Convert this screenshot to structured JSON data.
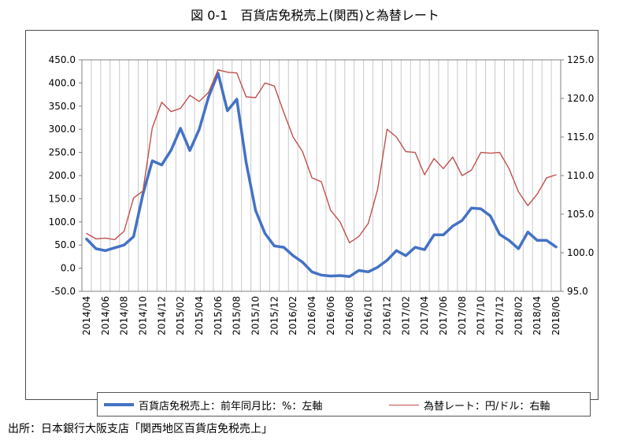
{
  "title": "図 0-1　百貨店免税売上(関西)と為替レート",
  "source": "出所：日本銀行大阪支店「関西地区百貨店免税売上」",
  "colors": {
    "series1": "#4472c4",
    "series2": "#c0504d",
    "grid": "#c8c8c8",
    "axis": "#808080"
  },
  "chart_data": {
    "type": "line",
    "x_tick_labels": [
      "2014/04",
      "2014/06",
      "2014/08",
      "2014/10",
      "2014/12",
      "2015/02",
      "2015/04",
      "2015/06",
      "2015/08",
      "2015/10",
      "2015/12",
      "2016/02",
      "2016/04",
      "2016/06",
      "2016/08",
      "2016/10",
      "2016/12",
      "2017/02",
      "2017/04",
      "2017/06",
      "2017/08",
      "2017/10",
      "2017/12",
      "2018/02",
      "2018/04",
      "2018/06"
    ],
    "x": [
      "2014/04",
      "2014/05",
      "2014/06",
      "2014/07",
      "2014/08",
      "2014/09",
      "2014/10",
      "2014/11",
      "2014/12",
      "2015/01",
      "2015/02",
      "2015/03",
      "2015/04",
      "2015/05",
      "2015/06",
      "2015/07",
      "2015/08",
      "2015/09",
      "2015/10",
      "2015/11",
      "2015/12",
      "2016/01",
      "2016/02",
      "2016/03",
      "2016/04",
      "2016/05",
      "2016/06",
      "2016/07",
      "2016/08",
      "2016/09",
      "2016/10",
      "2016/11",
      "2016/12",
      "2017/01",
      "2017/02",
      "2017/03",
      "2017/04",
      "2017/05",
      "2017/06",
      "2017/07",
      "2017/08",
      "2017/09",
      "2017/10",
      "2017/11",
      "2017/12",
      "2018/01",
      "2018/02",
      "2018/03",
      "2018/04",
      "2018/05",
      "2018/06"
    ],
    "left_axis": {
      "min": -50,
      "max": 450,
      "step": 50,
      "tick_labels": [
        "-50.0",
        "0.0",
        "50.0",
        "100.0",
        "150.0",
        "200.0",
        "250.0",
        "300.0",
        "350.0",
        "400.0",
        "450.0"
      ]
    },
    "right_axis": {
      "min": 95,
      "max": 125,
      "step": 5,
      "tick_labels": [
        "95.0",
        "100.0",
        "105.0",
        "110.0",
        "115.0",
        "120.0",
        "125.0"
      ]
    },
    "grid": "vertical",
    "legend_position": "bottom",
    "series": [
      {
        "name": "百貨店免税売上：前年同月比：%：左軸",
        "axis": "left",
        "color": "#4472c4",
        "values": [
          63,
          42,
          38,
          44,
          50,
          68,
          160,
          232,
          223,
          255,
          302,
          254,
          300,
          370,
          421,
          340,
          365,
          228,
          125,
          75,
          48,
          45,
          27,
          13,
          -8,
          -15,
          -17,
          -16,
          -18,
          -5,
          -8,
          2,
          17,
          38,
          27,
          45,
          40,
          72,
          72,
          91,
          103,
          130,
          128,
          113,
          73,
          60,
          42,
          78,
          60,
          60,
          46
        ]
      },
      {
        "name": "為替レート：円/ドル：右軸",
        "axis": "right",
        "color": "#c0504d",
        "values": [
          102.5,
          101.8,
          101.9,
          101.7,
          102.8,
          107.1,
          108.0,
          116.2,
          119.5,
          118.3,
          118.7,
          120.4,
          119.6,
          120.8,
          123.7,
          123.4,
          123.3,
          120.2,
          120.1,
          122.0,
          121.6,
          118.2,
          115.0,
          113.1,
          109.7,
          109.2,
          105.5,
          104.0,
          101.3,
          102.1,
          103.8,
          108.2,
          116.0,
          115.0,
          113.1,
          113.0,
          110.1,
          112.2,
          110.9,
          112.4,
          110.0,
          110.7,
          113.0,
          112.9,
          113.0,
          110.9,
          107.9,
          106.1,
          107.6,
          109.7,
          110.1
        ]
      }
    ]
  }
}
